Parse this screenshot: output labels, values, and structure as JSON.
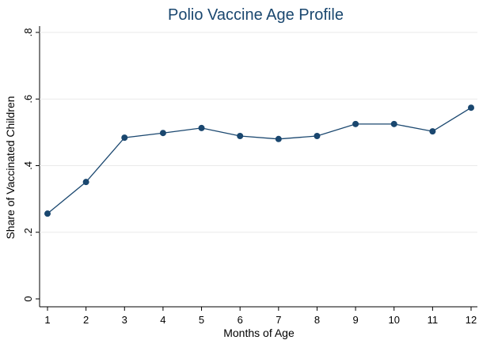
{
  "chart_data": {
    "type": "line",
    "title": "Polio Vaccine Age Profile",
    "x_label": "Months of Age",
    "y_label": "Share of Vaccinated Children",
    "x": [
      1,
      2,
      3,
      4,
      5,
      6,
      7,
      8,
      9,
      10,
      11,
      12
    ],
    "series": [
      {
        "name": "Share of Vaccinated Children",
        "color": "#1a476f",
        "values": [
          0.256,
          0.351,
          0.484,
          0.498,
          0.513,
          0.489,
          0.48,
          0.489,
          0.525,
          0.525,
          0.503,
          0.574
        ]
      }
    ],
    "xlim": [
      1,
      12
    ],
    "xticks": [
      1,
      2,
      3,
      4,
      5,
      6,
      7,
      8,
      9,
      10,
      11,
      12
    ],
    "ylim": [
      0,
      0.8
    ],
    "yticks": [
      0,
      {
        "value": 0.2,
        "label": ".2"
      },
      {
        "value": 0.4,
        "label": ".4"
      },
      {
        "value": 0.6,
        "label": ".6"
      },
      {
        "value": 0.8,
        "label": ".8"
      }
    ],
    "grid": true
  }
}
